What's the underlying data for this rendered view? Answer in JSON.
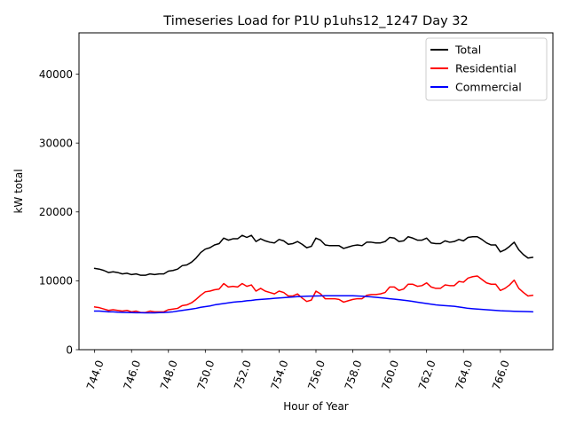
{
  "chart_data": {
    "type": "line",
    "title": "Timeseries Load for P1U p1uhs12_1247  Day 32",
    "xlabel": "Hour of Year",
    "ylabel": "kW total",
    "xlim": [
      743.15,
      768.85
    ],
    "ylim": [
      0,
      46000
    ],
    "x_ticks": [
      744,
      746,
      748,
      750,
      752,
      754,
      756,
      758,
      760,
      762,
      764,
      766
    ],
    "x_tick_labels": [
      "744.0",
      "746.0",
      "748.0",
      "750.0",
      "752.0",
      "754.0",
      "756.0",
      "758.0",
      "760.0",
      "762.0",
      "764.0",
      "766.0"
    ],
    "y_ticks": [
      0,
      10000,
      20000,
      30000,
      40000
    ],
    "y_tick_labels": [
      "0",
      "10000",
      "20000",
      "30000",
      "40000"
    ],
    "grid": false,
    "legend_position": "top-right",
    "x_start": 744,
    "x_step": 0.25,
    "series": [
      {
        "name": "Total",
        "color": "#000000",
        "values": [
          11800,
          11700,
          11500,
          11200,
          11300,
          11200,
          11000,
          11100,
          10900,
          11000,
          10800,
          10800,
          11000,
          10900,
          11000,
          11000,
          11400,
          11500,
          11700,
          12200,
          12300,
          12700,
          13300,
          14100,
          14600,
          14800,
          15200,
          15400,
          16200,
          15900,
          16100,
          16100,
          16600,
          16300,
          16600,
          15700,
          16100,
          15800,
          15600,
          15500,
          16000,
          15800,
          15300,
          15400,
          15700,
          15300,
          14800,
          15000,
          16200,
          15900,
          15200,
          15100,
          15100,
          15100,
          14700,
          14900,
          15100,
          15200,
          15100,
          15600,
          15600,
          15500,
          15500,
          15700,
          16300,
          16200,
          15700,
          15800,
          16400,
          16200,
          15900,
          15900,
          16200,
          15500,
          15400,
          15400,
          15800,
          15600,
          15700,
          16000,
          15800,
          16300,
          16400,
          16400,
          16000,
          15500,
          15200,
          15200,
          14200,
          14500,
          15000,
          15600,
          14500,
          13800,
          13300,
          13400
        ]
      },
      {
        "name": "Residential",
        "color": "#ff0000",
        "values": [
          6200,
          6100,
          5900,
          5700,
          5800,
          5700,
          5600,
          5700,
          5500,
          5600,
          5400,
          5400,
          5600,
          5500,
          5500,
          5500,
          5800,
          5900,
          6000,
          6400,
          6500,
          6800,
          7300,
          7900,
          8400,
          8500,
          8700,
          8800,
          9600,
          9100,
          9200,
          9100,
          9600,
          9200,
          9400,
          8500,
          8900,
          8500,
          8300,
          8100,
          8500,
          8300,
          7800,
          7800,
          8100,
          7500,
          7000,
          7200,
          8500,
          8100,
          7400,
          7400,
          7400,
          7300,
          6900,
          7100,
          7300,
          7400,
          7400,
          7900,
          8000,
          8000,
          8100,
          8300,
          9100,
          9100,
          8600,
          8800,
          9500,
          9500,
          9200,
          9300,
          9700,
          9100,
          8900,
          8900,
          9400,
          9300,
          9300,
          9900,
          9800,
          10400,
          10600,
          10700,
          10200,
          9700,
          9500,
          9500,
          8600,
          8900,
          9400,
          10100,
          8900,
          8300,
          7800,
          7900
        ]
      },
      {
        "name": "Commercial",
        "color": "#0000ff",
        "values": [
          5600,
          5600,
          5550,
          5500,
          5500,
          5450,
          5420,
          5400,
          5380,
          5370,
          5360,
          5350,
          5350,
          5350,
          5380,
          5400,
          5450,
          5500,
          5600,
          5700,
          5800,
          5900,
          6000,
          6150,
          6250,
          6350,
          6500,
          6600,
          6700,
          6800,
          6900,
          6950,
          7000,
          7100,
          7150,
          7250,
          7300,
          7350,
          7400,
          7450,
          7500,
          7550,
          7600,
          7650,
          7700,
          7730,
          7760,
          7780,
          7800,
          7810,
          7820,
          7820,
          7830,
          7830,
          7830,
          7830,
          7820,
          7800,
          7760,
          7720,
          7660,
          7600,
          7540,
          7470,
          7400,
          7330,
          7260,
          7190,
          7100,
          7000,
          6900,
          6800,
          6700,
          6600,
          6500,
          6450,
          6400,
          6350,
          6300,
          6200,
          6100,
          6000,
          5950,
          5900,
          5850,
          5800,
          5750,
          5700,
          5650,
          5620,
          5600,
          5580,
          5560,
          5540,
          5520,
          5500
        ]
      }
    ]
  }
}
